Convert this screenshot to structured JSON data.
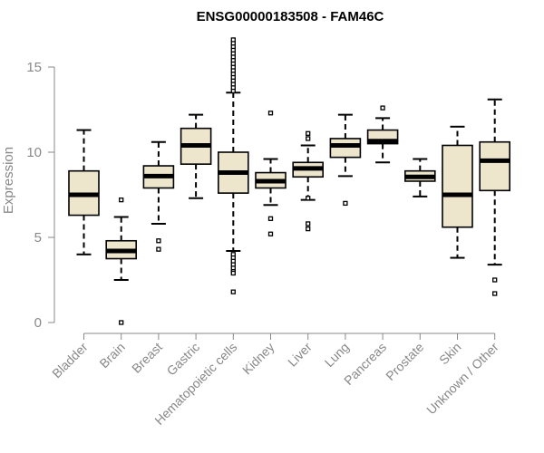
{
  "chart_data": {
    "type": "box",
    "title": "ENSG00000183508 - FAM46C",
    "ylabel": "Expression",
    "xlabel": "",
    "ylim": [
      0,
      16.5
    ],
    "yticks": [
      0,
      5,
      10,
      15
    ],
    "colors": {
      "box_fill": "#ede6cd",
      "median": "#000000",
      "axis": "#888888"
    },
    "categories": [
      "Bladder",
      "Brain",
      "Breast",
      "Gastric",
      "Hematopoietic cells",
      "Kidney",
      "Liver",
      "Lung",
      "Pancreas",
      "Prostate",
      "Skin",
      "Unknown / Other"
    ],
    "boxes": [
      {
        "category": "Bladder",
        "whisker_low": 4.0,
        "q1": 6.3,
        "median": 7.5,
        "q3": 8.9,
        "whisker_high": 11.3,
        "outliers": []
      },
      {
        "category": "Brain",
        "whisker_low": 2.5,
        "q1": 3.75,
        "median": 4.2,
        "q3": 4.8,
        "whisker_high": 6.2,
        "outliers": [
          7.2,
          0.0
        ]
      },
      {
        "category": "Breast",
        "whisker_low": 5.8,
        "q1": 7.9,
        "median": 8.6,
        "q3": 9.2,
        "whisker_high": 10.6,
        "outliers": [
          4.8,
          4.3
        ]
      },
      {
        "category": "Gastric",
        "whisker_low": 7.3,
        "q1": 9.3,
        "median": 10.4,
        "q3": 11.4,
        "whisker_high": 12.2,
        "outliers": []
      },
      {
        "category": "Hematopoietic cells",
        "whisker_low": 4.2,
        "q1": 7.6,
        "median": 8.8,
        "q3": 10.0,
        "whisker_high": 13.5,
        "outliers": [
          13.6,
          13.8,
          14.0,
          14.2,
          14.4,
          14.6,
          14.8,
          15.0,
          15.2,
          15.4,
          15.6,
          15.8,
          16.0,
          16.2,
          16.4,
          16.6,
          4.0,
          3.8,
          3.6,
          3.4,
          3.2,
          3.0,
          2.9,
          1.8
        ]
      },
      {
        "category": "Kidney",
        "whisker_low": 6.9,
        "q1": 7.9,
        "median": 8.3,
        "q3": 8.8,
        "whisker_high": 9.6,
        "outliers": [
          12.3,
          6.1,
          5.2
        ]
      },
      {
        "category": "Liver",
        "whisker_low": 7.2,
        "q1": 8.55,
        "median": 9.05,
        "q3": 9.4,
        "whisker_high": 10.4,
        "outliers": [
          11.1,
          10.8,
          7.3,
          5.8,
          5.5
        ]
      },
      {
        "category": "Lung",
        "whisker_low": 8.6,
        "q1": 9.7,
        "median": 10.4,
        "q3": 10.8,
        "whisker_high": 12.2,
        "outliers": [
          7.0
        ]
      },
      {
        "category": "Pancreas",
        "whisker_low": 9.4,
        "q1": 10.5,
        "median": 10.65,
        "q3": 11.3,
        "whisker_high": 12.0,
        "outliers": [
          12.6
        ]
      },
      {
        "category": "Prostate",
        "whisker_low": 7.4,
        "q1": 8.3,
        "median": 8.55,
        "q3": 8.9,
        "whisker_high": 9.6,
        "outliers": []
      },
      {
        "category": "Skin",
        "whisker_low": 3.8,
        "q1": 5.6,
        "median": 7.5,
        "q3": 10.4,
        "whisker_high": 11.5,
        "outliers": []
      },
      {
        "category": "Unknown / Other",
        "whisker_low": 3.4,
        "q1": 7.75,
        "median": 9.5,
        "q3": 10.6,
        "whisker_high": 13.1,
        "outliers": [
          2.5,
          1.7
        ]
      }
    ]
  }
}
